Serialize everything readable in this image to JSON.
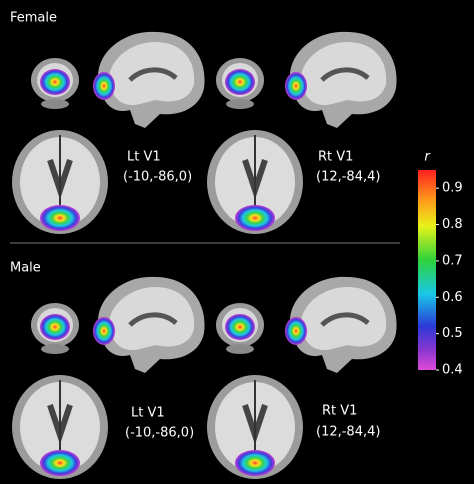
{
  "panels": [
    {
      "title": "Female",
      "left": {
        "label": "Lt V1",
        "coords": "(-10,-86,0)"
      },
      "right": {
        "label": "Rt V1",
        "coords": "(12,-84,4)"
      }
    },
    {
      "title": "Male",
      "left": {
        "label": "Lt V1",
        "coords": "(-10,-86,0)"
      },
      "right": {
        "label": "Rt V1",
        "coords": "(12,-84,4)"
      }
    }
  ],
  "colorbar": {
    "label": "r",
    "range": [
      0.4,
      0.95
    ],
    "ticks": [
      0.9,
      0.8,
      0.7,
      0.6,
      0.5,
      0.4
    ]
  }
}
